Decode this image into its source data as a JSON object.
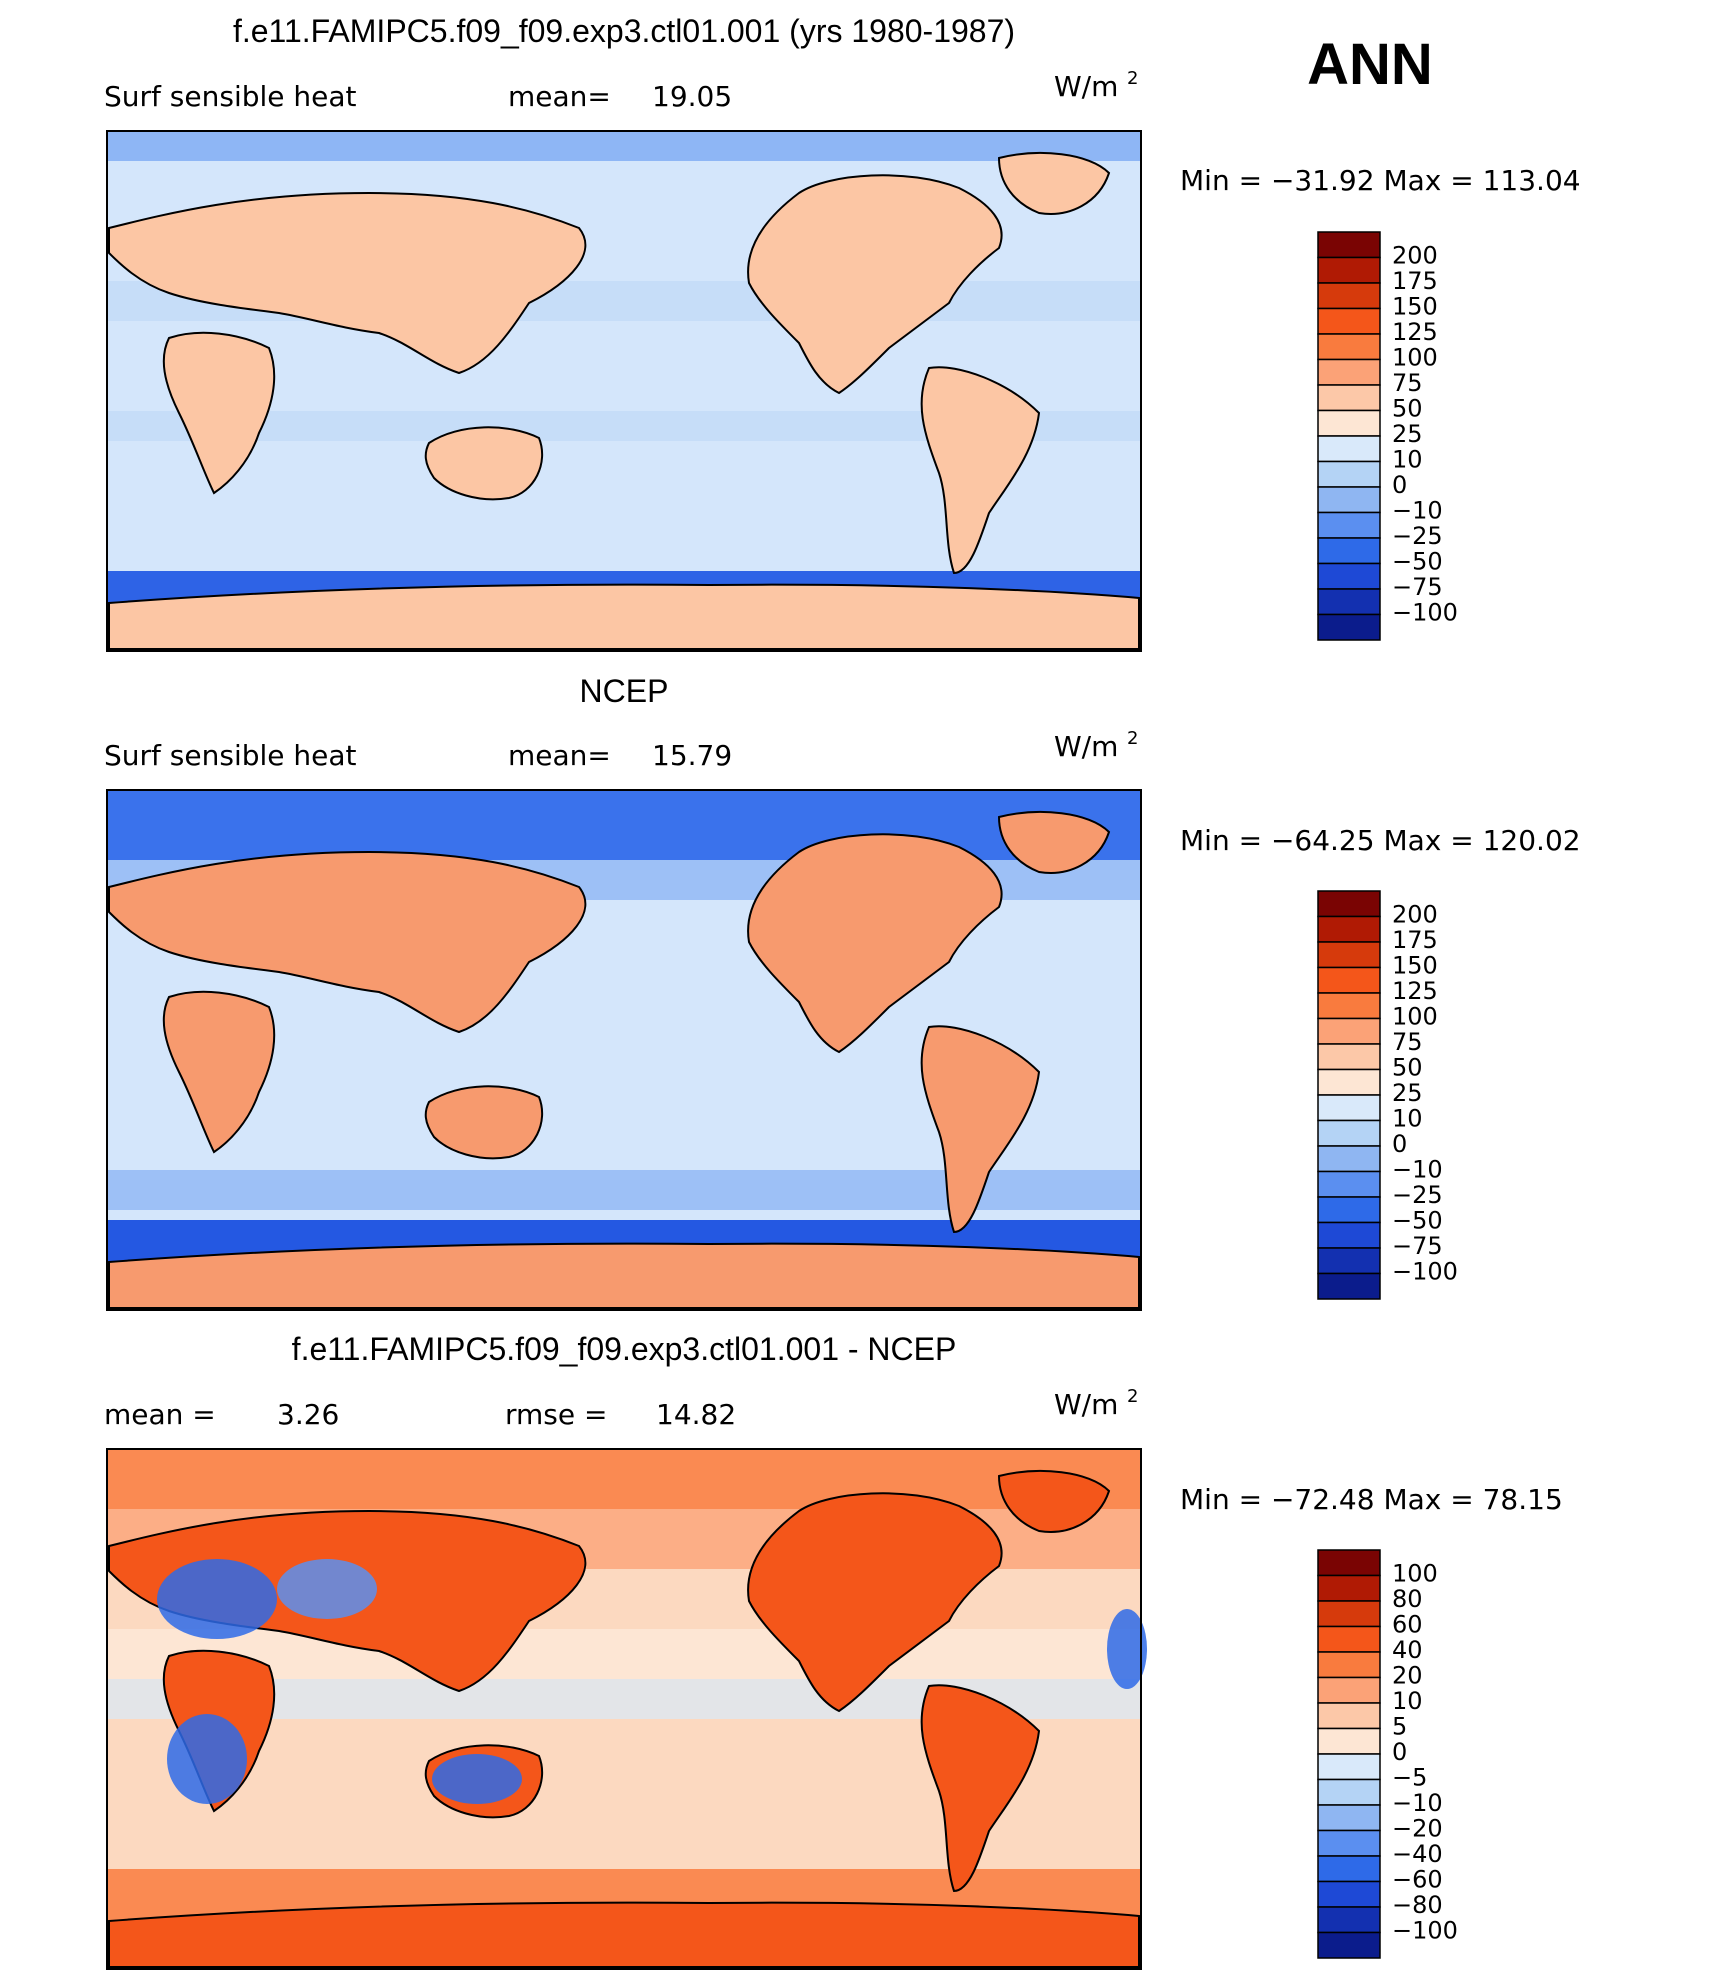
{
  "season": "ANN",
  "unit_base": "W/m",
  "unit_exp": "2",
  "panels": [
    {
      "title": "f.e11.FAMIPC5.f09_f09.exp3.ctl01.001 (yrs 1980-1987)",
      "left_label": "Surf  sensible  heat",
      "mean_label": "mean=",
      "mean_value": "19.05",
      "minmax": "Min  =  −31.92  Max  =  113.04",
      "colorbar_levels": [
        "200",
        "175",
        "150",
        "125",
        "100",
        "75",
        "50",
        "25",
        "10",
        "0",
        "−10",
        "−25",
        "−50",
        "−75",
        "−100"
      ]
    },
    {
      "title": "NCEP",
      "left_label": "Surf  sensible  heat",
      "mean_label": "mean=",
      "mean_value": "15.79",
      "minmax": "Min  =  −64.25  Max  =  120.02",
      "colorbar_levels": [
        "200",
        "175",
        "150",
        "125",
        "100",
        "75",
        "50",
        "25",
        "10",
        "0",
        "−10",
        "−25",
        "−50",
        "−75",
        "−100"
      ]
    },
    {
      "title": "f.e11.FAMIPC5.f09_f09.exp3.ctl01.001 - NCEP",
      "left_label": "mean  =",
      "mean_value": "3.26",
      "rmse_label": "rmse  =",
      "rmse_value": "14.82",
      "minmax": "Min  =  −72.48  Max  =    78.15",
      "colorbar_levels": [
        "100",
        "80",
        "60",
        "40",
        "20",
        "10",
        "5",
        "0",
        "−5",
        "−10",
        "−20",
        "−40",
        "−60",
        "−80",
        "−100"
      ]
    }
  ],
  "colors": {
    "abs_scale": [
      "#7a0403",
      "#b01a04",
      "#d63a0c",
      "#f4561a",
      "#f97b3e",
      "#fba277",
      "#fcc8a8",
      "#fde6d4",
      "#d9e9fa",
      "#b4d3f5",
      "#8fb6f2",
      "#5b8ff0",
      "#2e6ae8",
      "#1e49d6",
      "#1330b0",
      "#0b1c8c"
    ],
    "diff_scale": [
      "#7a0403",
      "#b01a04",
      "#d63a0c",
      "#f4561a",
      "#f97b3e",
      "#fba277",
      "#fcc8a8",
      "#fde6d4",
      "#d9e9fa",
      "#b4d3f5",
      "#8fb6f2",
      "#5b8ff0",
      "#2e6ae8",
      "#1e49d6",
      "#1330b0",
      "#0b1c8c"
    ]
  }
}
